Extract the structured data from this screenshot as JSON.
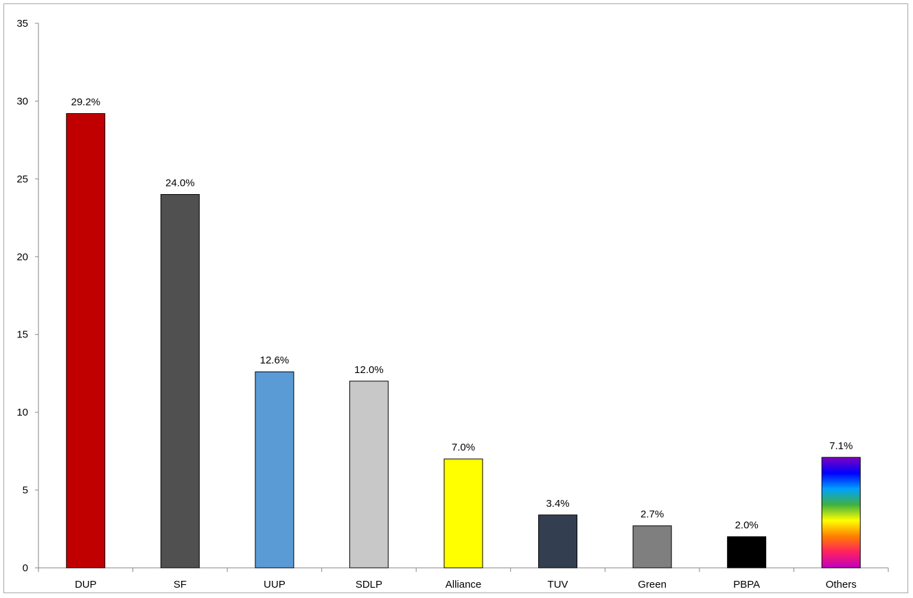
{
  "chart_data": {
    "type": "bar",
    "title": "",
    "xlabel": "",
    "ylabel": "",
    "ylim": [
      0,
      35
    ],
    "yticks": [
      0,
      5,
      10,
      15,
      20,
      25,
      30,
      35
    ],
    "grid": false,
    "legend": "none",
    "categories": [
      "DUP",
      "SF",
      "UUP",
      "SDLP",
      "Alliance",
      "TUV",
      "Green",
      "PBPA",
      "Others"
    ],
    "values": [
      29.2,
      24.0,
      12.6,
      12.0,
      7.0,
      3.4,
      2.7,
      2.0,
      7.1
    ],
    "data_labels": [
      "29.2%",
      "24.0%",
      "12.6%",
      "12.0%",
      "7.0%",
      "3.4%",
      "2.7%",
      "2.0%",
      "7.1%"
    ],
    "colors": [
      "#c00000",
      "#505050",
      "#5b9bd5",
      "#c8c8c8",
      "#ffff00",
      "#333f50",
      "#7f7f7f",
      "#000000",
      "rainbow"
    ],
    "rainbow_stops": [
      "#c000c0",
      "#ff2060",
      "#ff8000",
      "#ffff00",
      "#40b040",
      "#00a0ff",
      "#0000ff",
      "#8000c0"
    ]
  }
}
